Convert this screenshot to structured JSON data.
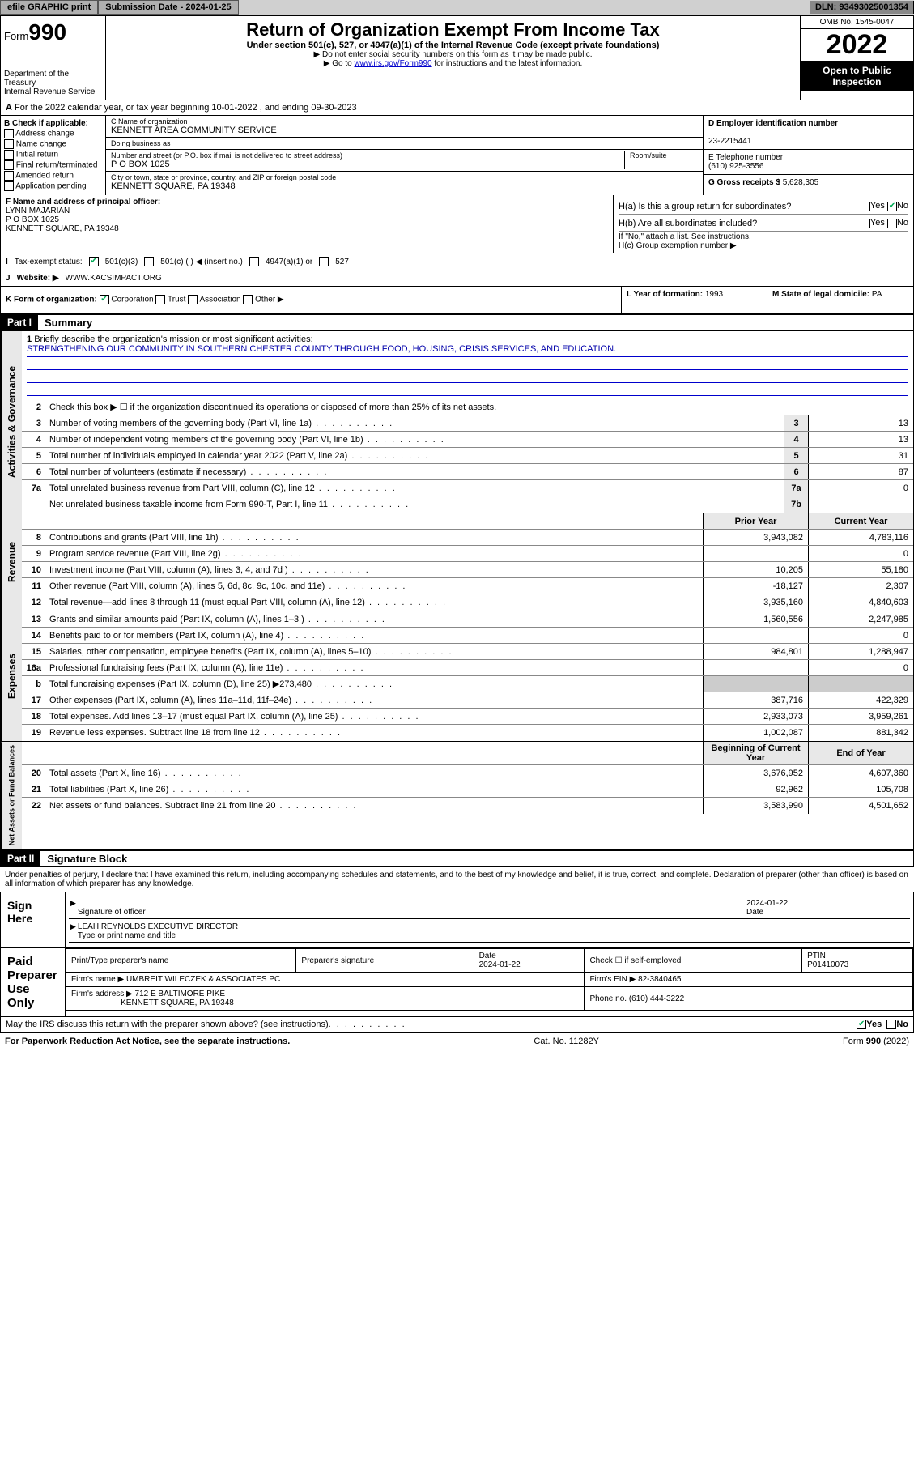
{
  "topbar": {
    "efile": "efile GRAPHIC print",
    "subdate_label": "Submission Date - ",
    "subdate": "2024-01-25",
    "dln_label": "DLN: ",
    "dln": "93493025001354"
  },
  "header": {
    "form_prefix": "Form",
    "form_num": "990",
    "dept": "Department of the Treasury\nInternal Revenue Service",
    "title": "Return of Organization Exempt From Income Tax",
    "subtitle": "Under section 501(c), 527, or 4947(a)(1) of the Internal Revenue Code (except private foundations)",
    "note1": "▶ Do not enter social security numbers on this form as it may be made public.",
    "note2_a": "▶ Go to ",
    "note2_link": "www.irs.gov/Form990",
    "note2_b": " for instructions and the latest information.",
    "omb": "OMB No. 1545-0047",
    "year": "2022",
    "open": "Open to Public Inspection"
  },
  "rowA": "For the 2022 calendar year, or tax year beginning 10-01-2022   , and ending 09-30-2023",
  "B": {
    "label": "B Check if applicable:",
    "opts": [
      "Address change",
      "Name change",
      "Initial return",
      "Final return/terminated",
      "Amended return",
      "Application pending"
    ]
  },
  "C": {
    "name_label": "C Name of organization",
    "name": "KENNETT AREA COMMUNITY SERVICE",
    "dba_label": "Doing business as",
    "dba": "",
    "street_label": "Number and street (or P.O. box if mail is not delivered to street address)",
    "room_label": "Room/suite",
    "street": "P O BOX 1025",
    "city_label": "City or town, state or province, country, and ZIP or foreign postal code",
    "city": "KENNETT SQUARE, PA  19348"
  },
  "D": {
    "ein_label": "D Employer identification number",
    "ein": "23-2215441",
    "phone_label": "E Telephone number",
    "phone": "(610) 925-3556",
    "gross_label": "G Gross receipts $ ",
    "gross": "5,628,305"
  },
  "F": {
    "label": "F  Name and address of principal officer:",
    "name": "LYNN MAJARIAN",
    "addr1": "P O BOX 1025",
    "addr2": "KENNETT SQUARE, PA  19348"
  },
  "H": {
    "a_label": "H(a)  Is this a group return for subordinates?",
    "a_yes": "Yes",
    "a_no": "No",
    "b_label": "H(b)  Are all subordinates included?",
    "b_note": "If \"No,\" attach a list. See instructions.",
    "c_label": "H(c)  Group exemption number ▶"
  },
  "I": {
    "label": "Tax-exempt status:",
    "o1": "501(c)(3)",
    "o2": "501(c) (  ) ◀ (insert no.)",
    "o3": "4947(a)(1) or",
    "o4": "527"
  },
  "J": {
    "label": "Website: ▶",
    "val": "WWW.KACSIMPACT.ORG"
  },
  "K": {
    "label": "K Form of organization:",
    "o1": "Corporation",
    "o2": "Trust",
    "o3": "Association",
    "o4": "Other ▶"
  },
  "L": {
    "label": "L Year of formation: ",
    "val": "1993"
  },
  "M": {
    "label": "M State of legal domicile: ",
    "val": "PA"
  },
  "partI": {
    "hdr": "Part I",
    "title": "Summary",
    "q1": "Briefly describe the organization's mission or most significant activities:",
    "mission": "STRENGTHENING OUR COMMUNITY IN SOUTHERN CHESTER COUNTY THROUGH FOOD, HOUSING, CRISIS SERVICES, AND EDUCATION.",
    "q2": "Check this box ▶ ☐  if the organization discontinued its operations or disposed of more than 25% of its net assets.",
    "sections": {
      "gov": "Activities & Governance",
      "rev": "Revenue",
      "exp": "Expenses",
      "net": "Net Assets or Fund Balances"
    },
    "col_prior": "Prior Year",
    "col_current": "Current Year",
    "col_beg": "Beginning of Current Year",
    "col_end": "End of Year",
    "rows_single": [
      {
        "n": "3",
        "t": "Number of voting members of the governing body (Part VI, line 1a)",
        "box": "3",
        "v": "13"
      },
      {
        "n": "4",
        "t": "Number of independent voting members of the governing body (Part VI, line 1b)",
        "box": "4",
        "v": "13"
      },
      {
        "n": "5",
        "t": "Total number of individuals employed in calendar year 2022 (Part V, line 2a)",
        "box": "5",
        "v": "31"
      },
      {
        "n": "6",
        "t": "Total number of volunteers (estimate if necessary)",
        "box": "6",
        "v": "87"
      },
      {
        "n": "7a",
        "t": "Total unrelated business revenue from Part VIII, column (C), line 12",
        "box": "7a",
        "v": "0"
      },
      {
        "n": "",
        "t": "Net unrelated business taxable income from Form 990-T, Part I, line 11",
        "box": "7b",
        "v": ""
      }
    ],
    "rows_rev": [
      {
        "n": "8",
        "t": "Contributions and grants (Part VIII, line 1h)",
        "p": "3,943,082",
        "c": "4,783,116"
      },
      {
        "n": "9",
        "t": "Program service revenue (Part VIII, line 2g)",
        "p": "",
        "c": "0"
      },
      {
        "n": "10",
        "t": "Investment income (Part VIII, column (A), lines 3, 4, and 7d )",
        "p": "10,205",
        "c": "55,180"
      },
      {
        "n": "11",
        "t": "Other revenue (Part VIII, column (A), lines 5, 6d, 8c, 9c, 10c, and 11e)",
        "p": "-18,127",
        "c": "2,307"
      },
      {
        "n": "12",
        "t": "Total revenue—add lines 8 through 11 (must equal Part VIII, column (A), line 12)",
        "p": "3,935,160",
        "c": "4,840,603"
      }
    ],
    "rows_exp": [
      {
        "n": "13",
        "t": "Grants and similar amounts paid (Part IX, column (A), lines 1–3 )",
        "p": "1,560,556",
        "c": "2,247,985"
      },
      {
        "n": "14",
        "t": "Benefits paid to or for members (Part IX, column (A), line 4)",
        "p": "",
        "c": "0"
      },
      {
        "n": "15",
        "t": "Salaries, other compensation, employee benefits (Part IX, column (A), lines 5–10)",
        "p": "984,801",
        "c": "1,288,947"
      },
      {
        "n": "16a",
        "t": "Professional fundraising fees (Part IX, column (A), line 11e)",
        "p": "",
        "c": "0"
      },
      {
        "n": "b",
        "t": "Total fundraising expenses (Part IX, column (D), line 25) ▶273,480",
        "p": "—",
        "c": "—"
      },
      {
        "n": "17",
        "t": "Other expenses (Part IX, column (A), lines 11a–11d, 11f–24e)",
        "p": "387,716",
        "c": "422,329"
      },
      {
        "n": "18",
        "t": "Total expenses. Add lines 13–17 (must equal Part IX, column (A), line 25)",
        "p": "2,933,073",
        "c": "3,959,261"
      },
      {
        "n": "19",
        "t": "Revenue less expenses. Subtract line 18 from line 12",
        "p": "1,002,087",
        "c": "881,342"
      }
    ],
    "rows_net": [
      {
        "n": "20",
        "t": "Total assets (Part X, line 16)",
        "p": "3,676,952",
        "c": "4,607,360"
      },
      {
        "n": "21",
        "t": "Total liabilities (Part X, line 26)",
        "p": "92,962",
        "c": "105,708"
      },
      {
        "n": "22",
        "t": "Net assets or fund balances. Subtract line 21 from line 20",
        "p": "3,583,990",
        "c": "4,501,652"
      }
    ]
  },
  "partII": {
    "hdr": "Part II",
    "title": "Signature Block",
    "decl": "Under penalties of perjury, I declare that I have examined this return, including accompanying schedules and statements, and to the best of my knowledge and belief, it is true, correct, and complete. Declaration of preparer (other than officer) is based on all information of which preparer has any knowledge.",
    "sign_here": "Sign Here",
    "sig_officer": "Signature of officer",
    "sig_date": "Date",
    "sig_date_val": "2024-01-22",
    "officer_name": "LEAH REYNOLDS  EXECUTIVE DIRECTOR",
    "officer_label": "Type or print name and title",
    "paid": "Paid Preparer Use Only",
    "prep_name_label": "Print/Type preparer's name",
    "prep_sig_label": "Preparer's signature",
    "prep_date_label": "Date",
    "prep_date": "2024-01-22",
    "prep_check_label": "Check ☐ if self-employed",
    "ptin_label": "PTIN",
    "ptin": "P01410073",
    "firm_name_label": "Firm's name     ▶",
    "firm_name": "UMBREIT WILECZEK & ASSOCIATES PC",
    "firm_ein_label": "Firm's EIN ▶",
    "firm_ein": "82-3840465",
    "firm_addr_label": "Firm's address ▶",
    "firm_addr1": "712 E BALTIMORE PIKE",
    "firm_addr2": "KENNETT SQUARE, PA  19348",
    "firm_phone_label": "Phone no. ",
    "firm_phone": "(610) 444-3222",
    "may_label": "May the IRS discuss this return with the preparer shown above? (see instructions)",
    "may_yes": "Yes",
    "may_no": "No"
  },
  "footer": {
    "left": "For Paperwork Reduction Act Notice, see the separate instructions.",
    "mid": "Cat. No. 11282Y",
    "right": "Form 990 (2022)"
  },
  "colors": {
    "link": "#0000cc",
    "check_green": "#00aa55",
    "section_bg": "#e8e8e8"
  }
}
